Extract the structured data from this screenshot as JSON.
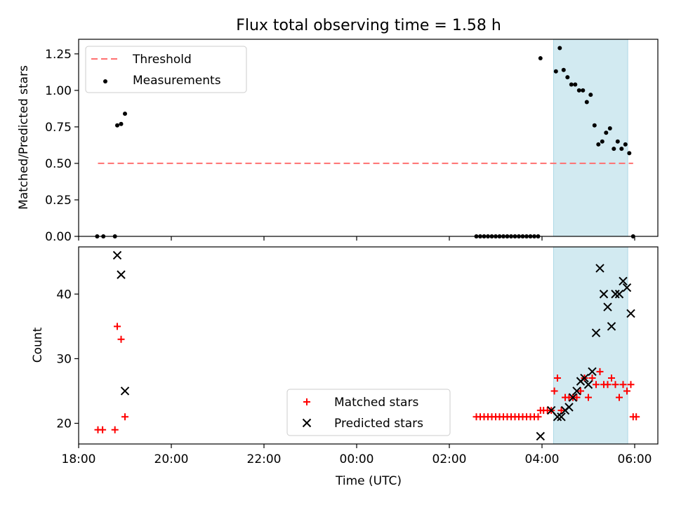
{
  "figure": {
    "title": "Flux total observing time = 1.58 h",
    "xlabel": "Time (UTC)"
  },
  "colors": {
    "threshold": "#ff7070",
    "measurements": "#000000",
    "matched": "#ff0000",
    "predicted": "#000000",
    "highlight": "#add8e6"
  },
  "chart_data": [
    {
      "type": "scatter",
      "panel": "top",
      "ylabel": "Matched/Predicted stars",
      "xlim": [
        "18:00",
        "06:30"
      ],
      "ylim": [
        0,
        1.35
      ],
      "yticks": [
        0.0,
        0.25,
        0.5,
        0.75,
        1.0,
        1.25
      ],
      "ytick_labels": [
        "0.00",
        "0.25",
        "0.50",
        "0.75",
        "1.00",
        "1.25"
      ],
      "grid": false,
      "legend_position": "top-left",
      "legend": [
        "Threshold",
        "Measurements"
      ],
      "highlight_span": [
        "04:15",
        "05:51"
      ],
      "threshold": {
        "name": "Threshold",
        "value": 0.5,
        "x_range": [
          "18:25",
          "05:58"
        ],
        "style": "dashed"
      },
      "series": [
        {
          "name": "Measurements",
          "marker": "dot",
          "points": [
            [
              "18:24",
              0.0
            ],
            [
              "18:32",
              0.0
            ],
            [
              "18:47",
              0.0
            ],
            [
              "18:50",
              0.76
            ],
            [
              "18:55",
              0.77
            ],
            [
              "19:00",
              0.84
            ],
            [
              "02:35",
              0.0
            ],
            [
              "02:40",
              0.0
            ],
            [
              "02:45",
              0.0
            ],
            [
              "02:50",
              0.0
            ],
            [
              "02:55",
              0.0
            ],
            [
              "03:00",
              0.0
            ],
            [
              "03:05",
              0.0
            ],
            [
              "03:10",
              0.0
            ],
            [
              "03:15",
              0.0
            ],
            [
              "03:20",
              0.0
            ],
            [
              "03:25",
              0.0
            ],
            [
              "03:30",
              0.0
            ],
            [
              "03:35",
              0.0
            ],
            [
              "03:40",
              0.0
            ],
            [
              "03:45",
              0.0
            ],
            [
              "03:50",
              0.0
            ],
            [
              "03:55",
              0.0
            ],
            [
              "03:58",
              1.22
            ],
            [
              "04:18",
              1.13
            ],
            [
              "04:23",
              1.29
            ],
            [
              "04:28",
              1.14
            ],
            [
              "04:33",
              1.09
            ],
            [
              "04:38",
              1.04
            ],
            [
              "04:43",
              1.04
            ],
            [
              "04:48",
              1.0
            ],
            [
              "04:53",
              1.0
            ],
            [
              "04:58",
              0.92
            ],
            [
              "05:03",
              0.97
            ],
            [
              "05:08",
              0.76
            ],
            [
              "05:13",
              0.63
            ],
            [
              "05:18",
              0.65
            ],
            [
              "05:23",
              0.71
            ],
            [
              "05:28",
              0.74
            ],
            [
              "05:33",
              0.6
            ],
            [
              "05:38",
              0.65
            ],
            [
              "05:43",
              0.6
            ],
            [
              "05:48",
              0.63
            ],
            [
              "05:53",
              0.57
            ],
            [
              "05:58",
              0.0
            ]
          ]
        }
      ]
    },
    {
      "type": "scatter",
      "panel": "bottom",
      "xlabel": "Time (UTC)",
      "ylabel": "Count",
      "xlim": [
        "18:00",
        "06:30"
      ],
      "ylim": [
        16.8,
        47.3
      ],
      "xticks": [
        "18:00",
        "20:00",
        "22:00",
        "00:00",
        "02:00",
        "04:00",
        "06:00"
      ],
      "yticks": [
        20,
        30,
        40
      ],
      "grid": false,
      "legend_position": "bottom-center",
      "legend": [
        "Matched stars",
        "Predicted stars"
      ],
      "highlight_span": [
        "04:15",
        "05:51"
      ],
      "series": [
        {
          "name": "Matched stars",
          "marker": "plus",
          "points": [
            [
              "18:25",
              19
            ],
            [
              "18:31",
              19
            ],
            [
              "18:47",
              19
            ],
            [
              "18:50",
              35
            ],
            [
              "18:55",
              33
            ],
            [
              "19:00",
              21
            ],
            [
              "02:35",
              21
            ],
            [
              "02:40",
              21
            ],
            [
              "02:45",
              21
            ],
            [
              "02:50",
              21
            ],
            [
              "02:55",
              21
            ],
            [
              "03:00",
              21
            ],
            [
              "03:05",
              21
            ],
            [
              "03:10",
              21
            ],
            [
              "03:15",
              21
            ],
            [
              "03:20",
              21
            ],
            [
              "03:25",
              21
            ],
            [
              "03:30",
              21
            ],
            [
              "03:35",
              21
            ],
            [
              "03:40",
              21
            ],
            [
              "03:45",
              21
            ],
            [
              "03:50",
              21
            ],
            [
              "03:55",
              21
            ],
            [
              "03:58",
              22
            ],
            [
              "04:02",
              22
            ],
            [
              "04:07",
              22
            ],
            [
              "04:12",
              22
            ],
            [
              "04:16",
              25
            ],
            [
              "04:20",
              27
            ],
            [
              "04:25",
              22
            ],
            [
              "04:30",
              24
            ],
            [
              "04:35",
              24
            ],
            [
              "04:40",
              24
            ],
            [
              "04:45",
              24
            ],
            [
              "04:50",
              25
            ],
            [
              "04:55",
              27
            ],
            [
              "05:00",
              24
            ],
            [
              "05:05",
              27
            ],
            [
              "05:10",
              26
            ],
            [
              "05:15",
              28
            ],
            [
              "05:20",
              26
            ],
            [
              "05:25",
              26
            ],
            [
              "05:30",
              27
            ],
            [
              "05:35",
              26
            ],
            [
              "05:40",
              24
            ],
            [
              "05:45",
              26
            ],
            [
              "05:50",
              25
            ],
            [
              "05:55",
              26
            ],
            [
              "05:58",
              21
            ],
            [
              "06:02",
              21
            ]
          ]
        },
        {
          "name": "Predicted stars",
          "marker": "x",
          "points": [
            [
              "18:50",
              46
            ],
            [
              "18:55",
              43
            ],
            [
              "19:00",
              25
            ],
            [
              "03:58",
              18
            ],
            [
              "04:12",
              22
            ],
            [
              "04:20",
              21
            ],
            [
              "04:25",
              21
            ],
            [
              "04:30",
              22
            ],
            [
              "04:35",
              22.5
            ],
            [
              "04:40",
              24
            ],
            [
              "04:45",
              25
            ],
            [
              "04:50",
              26.5
            ],
            [
              "04:55",
              27
            ],
            [
              "05:00",
              26
            ],
            [
              "05:05",
              28
            ],
            [
              "05:10",
              34
            ],
            [
              "05:15",
              44
            ],
            [
              "05:20",
              40
            ],
            [
              "05:25",
              38
            ],
            [
              "05:30",
              35
            ],
            [
              "05:35",
              40
            ],
            [
              "05:40",
              40
            ],
            [
              "05:45",
              42
            ],
            [
              "05:50",
              41
            ],
            [
              "05:55",
              37
            ]
          ]
        }
      ]
    }
  ]
}
